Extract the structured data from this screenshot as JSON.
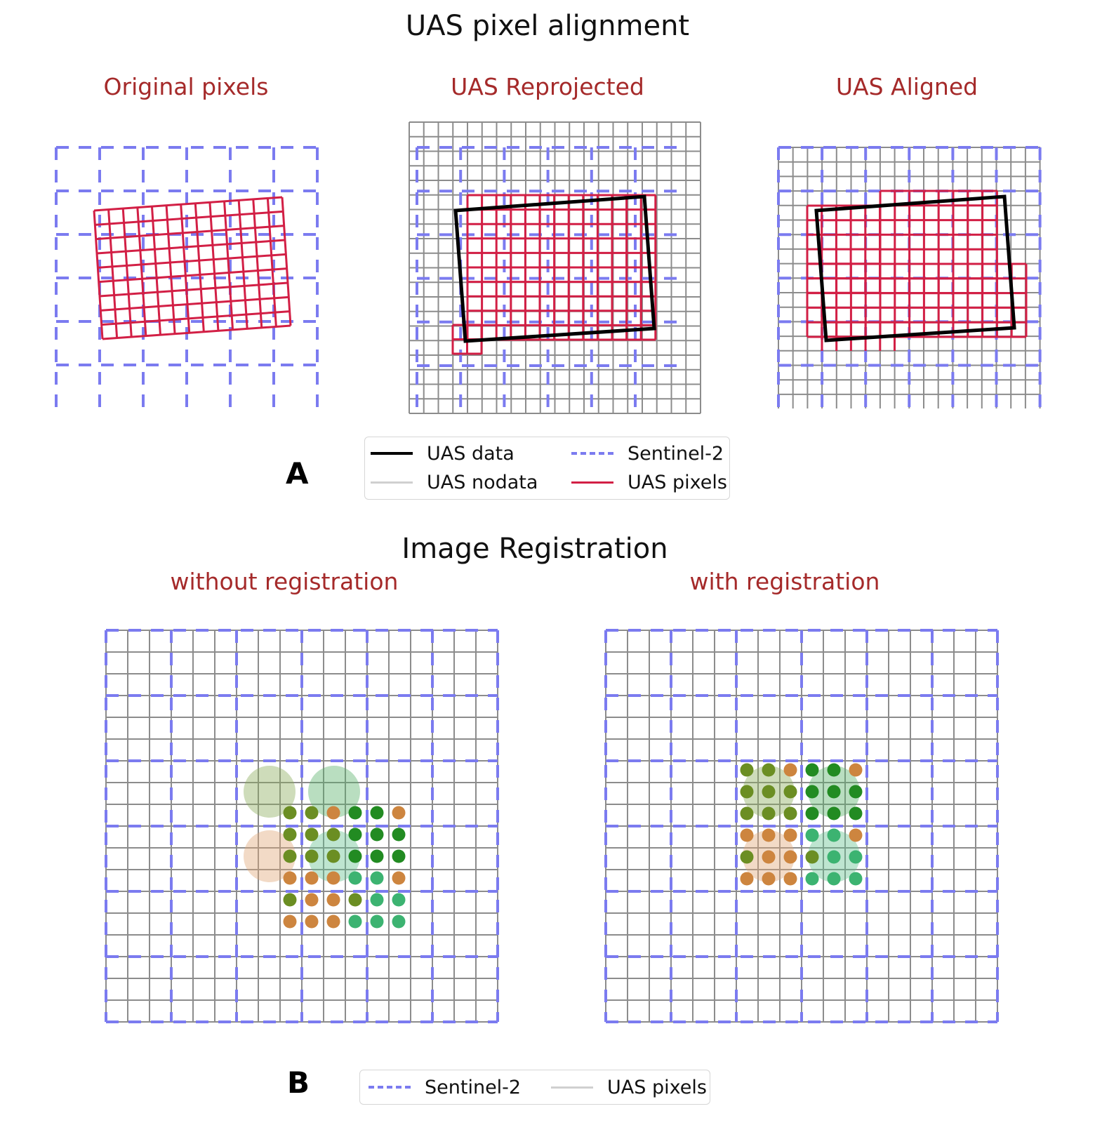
{
  "section_a": {
    "title": "UAS pixel alignment",
    "panel_letter": "A",
    "subplots": [
      {
        "title": "Original pixels"
      },
      {
        "title": "UAS Reprojected"
      },
      {
        "title": "UAS Aligned"
      }
    ],
    "legend": [
      {
        "label": "UAS data",
        "style": "solid",
        "color": "#000000"
      },
      {
        "label": "Sentinel-2",
        "style": "dashed",
        "color": "#7b7bf0"
      },
      {
        "label": "UAS nodata",
        "style": "solid",
        "color": "#d0d0d0"
      },
      {
        "label": "UAS pixels",
        "style": "solid",
        "color": "#d21f45"
      }
    ]
  },
  "section_b": {
    "title": "Image Registration",
    "panel_letter": "B",
    "subplots": [
      {
        "title": "without registration"
      },
      {
        "title": "with registration"
      }
    ],
    "legend": [
      {
        "label": "Sentinel-2",
        "style": "dashed",
        "color": "#7b7bf0"
      },
      {
        "label": "UAS pixels",
        "style": "solid",
        "color": "#d0d0d0"
      }
    ]
  },
  "colors": {
    "sentinel": "#7b7bf0",
    "uas_pixels": "#d21f45",
    "uas_data": "#000000",
    "nodata": "#d0d0d0",
    "title_red": "#a52a2a",
    "dot_olive": "#6b8e23",
    "dot_green": "#228b22",
    "dot_orange": "#cd853f",
    "dot_teal": "#3cb371"
  }
}
